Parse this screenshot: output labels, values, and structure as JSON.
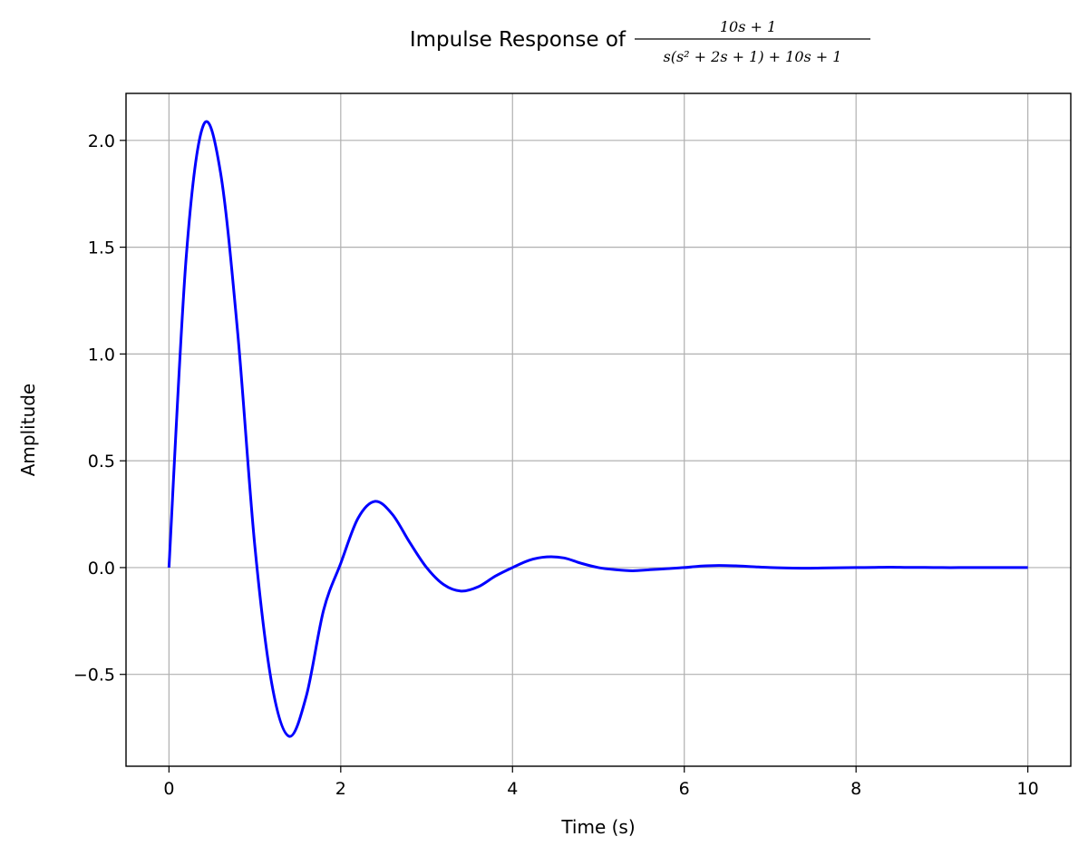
{
  "chart_data": {
    "type": "line",
    "title_prefix": "Impulse Response of ",
    "title_numerator": "10s + 1",
    "title_denominator": "s(s² + 2s + 1) + 10s + 1",
    "xlabel": "Time (s)",
    "ylabel": "Amplitude",
    "xlim": [
      -0.5,
      10.5
    ],
    "ylim": [
      -0.93,
      2.22
    ],
    "xticks": [
      0,
      2,
      4,
      6,
      8,
      10
    ],
    "xtick_labels": [
      "0",
      "2",
      "4",
      "6",
      "8",
      "10"
    ],
    "yticks": [
      -0.5,
      0.0,
      0.5,
      1.0,
      1.5,
      2.0
    ],
    "ytick_labels": [
      "−0.5",
      "0.0",
      "0.5",
      "1.0",
      "1.5",
      "2.0"
    ],
    "grid": true,
    "line_color": "#0000ff",
    "grid_color": "#b0b0b0",
    "series": [
      {
        "x": [
          0,
          0.2,
          0.4,
          0.6,
          0.8,
          1.0,
          1.2,
          1.4,
          1.6,
          1.8,
          2.0,
          2.2,
          2.4,
          2.6,
          2.8,
          3.0,
          3.2,
          3.4,
          3.6,
          3.8,
          4.0,
          4.2,
          4.4,
          4.6,
          4.8,
          5.0,
          5.2,
          5.4,
          5.6,
          5.8,
          6.0,
          6.2,
          6.4,
          6.6,
          6.8,
          7.0,
          7.2,
          7.4,
          7.6,
          7.8,
          8.0,
          8.2,
          8.4,
          8.6,
          8.8,
          9.0,
          9.2,
          9.4,
          9.6,
          9.8,
          10.0
        ],
        "y": [
          0,
          1.45,
          2.07,
          1.85,
          1.1,
          0.1,
          -0.55,
          -0.79,
          -0.6,
          -0.2,
          0.02,
          0.23,
          0.31,
          0.25,
          0.12,
          0.0,
          -0.08,
          -0.11,
          -0.09,
          -0.04,
          0.0,
          0.035,
          0.05,
          0.045,
          0.02,
          0.0,
          -0.01,
          -0.015,
          -0.01,
          -0.005,
          0.0,
          0.007,
          0.01,
          0.008,
          0.004,
          0.0,
          -0.002,
          -0.003,
          -0.002,
          -0.001,
          0.0,
          0.001,
          0.002,
          0.001,
          0.001,
          0.0,
          0.0,
          0.0,
          0.0,
          0.0,
          0.0
        ]
      }
    ]
  }
}
